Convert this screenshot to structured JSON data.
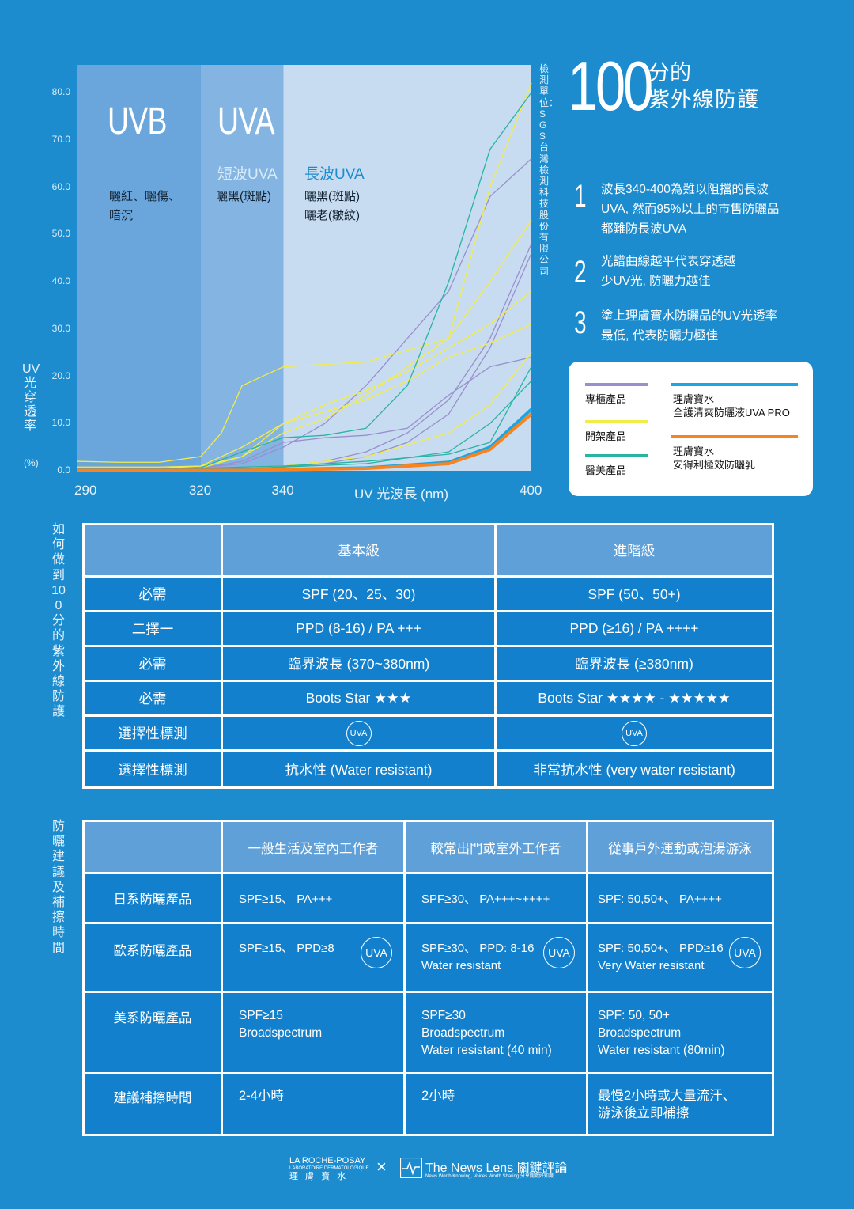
{
  "chart_data": {
    "type": "line",
    "xlabel": "UV 光波長 (nm)",
    "ylabel": "UV光穿透率",
    "yunit": "(%)",
    "xlim": [
      290,
      400
    ],
    "ylim": [
      0,
      85
    ],
    "xticks": [
      "290",
      "320",
      "340",
      "400"
    ],
    "yticks": [
      "0.0",
      "10.0",
      "20.0",
      "30.0",
      "40.0",
      "50.0",
      "60.0",
      "70.0",
      "80.0"
    ],
    "grid": false,
    "bands": [
      {
        "title": "UVB",
        "sub": "",
        "effect": [
          "曬紅、曬傷、",
          "暗沉"
        ],
        "range": [
          290,
          320
        ]
      },
      {
        "title": "UVA",
        "sub": "短波UVA",
        "effect": [
          "曬黑(斑點)"
        ],
        "range": [
          320,
          340
        ]
      },
      {
        "title": "",
        "sub": "長波UVA",
        "effect": [
          "曬黑(斑點)",
          "曬老(皺紋)"
        ],
        "range": [
          340,
          400
        ]
      }
    ],
    "series": [
      {
        "group": "專櫃產品",
        "color": "#9a8fce",
        "x": [
          290,
          310,
          320,
          330,
          340,
          350,
          360,
          370,
          380,
          390,
          400
        ],
        "y": [
          0.5,
          0.5,
          0.6,
          1.5,
          5,
          10,
          18,
          28,
          38,
          58,
          66
        ]
      },
      {
        "group": "專櫃產品",
        "color": "#9a8fce",
        "x": [
          290,
          310,
          320,
          330,
          340,
          350,
          360,
          370,
          380,
          390,
          400
        ],
        "y": [
          0.2,
          0.2,
          0.3,
          0.5,
          1,
          2,
          4,
          8,
          15,
          28,
          48
        ]
      },
      {
        "group": "專櫃產品",
        "color": "#9a8fce",
        "x": [
          290,
          310,
          320,
          330,
          340,
          350,
          360,
          370,
          380,
          390,
          400
        ],
        "y": [
          0.1,
          0.1,
          0.2,
          0.4,
          0.8,
          1.5,
          3,
          6,
          12,
          26,
          46
        ]
      },
      {
        "group": "專櫃產品",
        "color": "#9a8fce",
        "x": [
          290,
          310,
          320,
          330,
          340,
          350,
          360,
          370,
          380,
          390,
          400
        ],
        "y": [
          0.3,
          0.3,
          0.5,
          2,
          6,
          7,
          7.5,
          9,
          16,
          22,
          24
        ]
      },
      {
        "group": "開架產品",
        "color": "#f2ec4a",
        "x": [
          290,
          300,
          310,
          320,
          325,
          330,
          340,
          360,
          380,
          390,
          400
        ],
        "y": [
          2,
          1.8,
          1.8,
          3,
          8,
          18,
          22,
          23,
          28,
          60,
          82
        ]
      },
      {
        "group": "開架產品",
        "color": "#f2ec4a",
        "x": [
          290,
          310,
          320,
          330,
          340,
          350,
          360,
          370,
          380,
          390,
          400
        ],
        "y": [
          0.5,
          0.5,
          1,
          5,
          10,
          14,
          17,
          21,
          26,
          31,
          38
        ]
      },
      {
        "group": "開架產品",
        "color": "#f2ec4a",
        "x": [
          290,
          310,
          320,
          330,
          340,
          350,
          360,
          370,
          380,
          390,
          400
        ],
        "y": [
          0.3,
          0.3,
          0.6,
          3,
          8,
          11,
          16,
          22,
          28,
          40,
          53
        ]
      },
      {
        "group": "開架產品",
        "color": "#f2ec4a",
        "x": [
          290,
          310,
          320,
          330,
          340,
          360,
          380,
          390,
          400
        ],
        "y": [
          0.2,
          0.2,
          0.3,
          0.5,
          1,
          3,
          8,
          14,
          25
        ]
      },
      {
        "group": "開架產品",
        "color": "#f2ec4a",
        "x": [
          290,
          310,
          320,
          330,
          340,
          360,
          370,
          380,
          390,
          400
        ],
        "y": [
          0.8,
          0.8,
          1,
          3,
          10,
          15,
          19,
          24,
          27,
          31
        ]
      },
      {
        "group": "醫美產品",
        "color": "#28b3a3",
        "x": [
          290,
          310,
          320,
          330,
          340,
          350,
          360,
          370,
          380,
          390,
          400
        ],
        "y": [
          0.3,
          0.3,
          0.6,
          4,
          7,
          7.5,
          9,
          18,
          40,
          68,
          80
        ]
      },
      {
        "group": "醫美產品",
        "color": "#28b3a3",
        "x": [
          290,
          310,
          320,
          330,
          340,
          360,
          380,
          390,
          400
        ],
        "y": [
          0.2,
          0.2,
          0.3,
          0.5,
          0.8,
          1.5,
          4,
          10,
          19
        ]
      },
      {
        "group": "醫美產品",
        "color": "#28b3a3",
        "x": [
          290,
          310,
          320,
          330,
          340,
          360,
          380,
          390,
          400
        ],
        "y": [
          0.3,
          0.3,
          0.5,
          0.8,
          1,
          2,
          3.5,
          6,
          22
        ]
      },
      {
        "group": "理膚寶水 全護清爽防曬液UVA PRO",
        "color": "#19a6e6",
        "x": [
          290,
          310,
          320,
          330,
          340,
          360,
          380,
          390,
          400
        ],
        "y": [
          0.3,
          0.2,
          0.2,
          0.2,
          0.3,
          0.6,
          1.8,
          5,
          13
        ]
      },
      {
        "group": "理膚寶水 安得利極效防曬乳",
        "color": "#f7841f",
        "x": [
          290,
          310,
          320,
          330,
          340,
          360,
          380,
          390,
          400
        ],
        "y": [
          0.1,
          0.1,
          0.1,
          0.1,
          0.2,
          0.5,
          1.5,
          4.5,
          12
        ]
      }
    ],
    "legend": [
      {
        "label": "專櫃產品",
        "color": "#9a8fce"
      },
      {
        "label": "開架產品",
        "color": "#f2ec4a"
      },
      {
        "label": "醫美產品",
        "color": "#28b3a3"
      },
      {
        "label": "理膚寶水\n全護清爽防曬液UVA PRO",
        "color": "#19a6e6"
      },
      {
        "label": "理膚寶水\n安得利極效防曬乳",
        "color": "#f7841f"
      }
    ],
    "legend_position": "right"
  },
  "source": "檢測單位：SGS台灣檢測科技股份有限公司",
  "headline": {
    "big": "100",
    "line1": "分的",
    "line2": "紫外線防護"
  },
  "points": [
    {
      "num": "1",
      "text": [
        "波長340-400為難以阻擋的長波",
        "UVA, 然而95%以上的市售防曬品",
        "都難防長波UVA"
      ]
    },
    {
      "num": "2",
      "text": [
        "光譜曲線越平代表穿透越",
        "少UV光, 防曬力越佳"
      ]
    },
    {
      "num": "3",
      "text": [
        "塗上理膚寶水防曬品的UV光透率",
        "最低,  代表防曬力極佳"
      ]
    }
  ],
  "legend_box": {
    "l1": "專櫃產品",
    "l2": "開架產品",
    "l3": "醫美產品",
    "r1a": "理膚寶水",
    "r1b": "全護清爽防曬液UVA PRO",
    "r2a": "理膚寶水",
    "r2b": "安得利極效防曬乳"
  },
  "section1_label": "如何做到100分的紫外線防護",
  "table1": {
    "headers": [
      "",
      "基本級",
      "進階級"
    ],
    "rows": [
      [
        "必需",
        "SPF (20、25、30)",
        "SPF (50、50+)"
      ],
      [
        "二擇一",
        "PPD (8-16) / PA +++",
        "PPD (≥16) / PA ++++"
      ],
      [
        "必需",
        "臨界波長 (370~380nm)",
        "臨界波長 (≥380nm)"
      ],
      [
        "必需",
        "Boots Star ★★★",
        "Boots Star ★★★★ - ★★★★★"
      ],
      [
        "選擇性標測",
        "UVA",
        "UVA"
      ],
      [
        "選擇性標測",
        "抗水性 (Water resistant)",
        "非常抗水性 (very water resistant)"
      ]
    ]
  },
  "section2_label": "防曬建議及補擦時間",
  "table2": {
    "headers": [
      "",
      "一般生活及室內工作者",
      "較常出門或室外工作者",
      "從事戶外運動或泡湯游泳"
    ],
    "r1": {
      "label": "日系防曬產品",
      "c1": "SPF≥15、 PA+++",
      "c2": "SPF≥30、 PA+++~++++",
      "c3": "SPF: 50,50+、  PA++++"
    },
    "r2": {
      "label": "歐系防曬產品",
      "c1": "SPF≥15、 PPD≥8",
      "c2a": "SPF≥30、 PPD: 8-16",
      "c2b": "Water resistant",
      "c3a": "SPF: 50,50+、 PPD≥16",
      "c3b": "Very Water resistant",
      "badge": "UVA"
    },
    "r3": {
      "label": "美系防曬產品",
      "c1a": "SPF≥15",
      "c1b": "Broadspectrum",
      "c2a": "SPF≥30",
      "c2b": "Broadspectrum",
      "c2c": "Water resistant (40 min)",
      "c3a": "SPF: 50, 50+",
      "c3b": "Broadspectrum",
      "c3c": "Water resistant (80min)"
    },
    "r4": {
      "label": "建議補擦時間",
      "c1": "2-4小時",
      "c2": "2小時",
      "c3a": "最慢2小時或大量流汗、",
      "c3b": "游泳後立即補擦"
    }
  },
  "footer": {
    "brand1a": "LA ROCHE-POSAY",
    "brand1b": "LABORATOIRE DERMATOLOGIQUE",
    "brand1c": "理  膚  寶  水",
    "x": "×",
    "brand2": "The News Lens 關鍵評論",
    "tagline": "News Worth Knowing, Voices Worth Sharing 分享關鍵好知識"
  }
}
